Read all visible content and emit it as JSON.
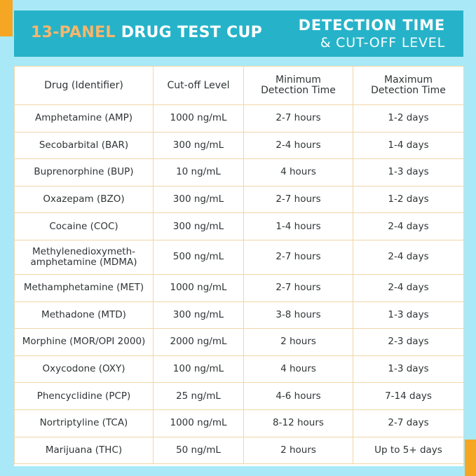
{
  "banner": {
    "title_accent": "13-PANEL",
    "title_main": "DRUG TEST CUP",
    "subtitle_line1": "DETECTION TIME",
    "subtitle_line2": "& CUT-OFF LEVEL",
    "background_color": "#26b3c9",
    "accent_color": "#f7b66c"
  },
  "page": {
    "background_color": "#a9e9f7",
    "corner_color": "#f5a623"
  },
  "table": {
    "headers": [
      "Drug (Identifier)",
      "Cut-off Level",
      "Minimum Detection Time",
      "Maximum Detection Time"
    ],
    "rows": [
      [
        "Amphetamine (AMP)",
        "1000 ng/mL",
        "2-7 hours",
        "1-2 days"
      ],
      [
        "Secobarbital (BAR)",
        "300 ng/mL",
        "2-4 hours",
        "1-4 days"
      ],
      [
        "Buprenorphine (BUP)",
        "10 ng/mL",
        "4 hours",
        "1-3 days"
      ],
      [
        "Oxazepam (BZO)",
        "300 ng/mL",
        "2-7 hours",
        "1-2 days"
      ],
      [
        "Cocaine (COC)",
        "300 ng/mL",
        "1-4 hours",
        "2-4 days"
      ],
      [
        "Methylenedioxymeth-amphetamine (MDMA)",
        "500 ng/mL",
        "2-7 hours",
        "2-4 days"
      ],
      [
        "Methamphetamine (MET)",
        "1000 ng/mL",
        "2-7 hours",
        "2-4 days"
      ],
      [
        "Methadone (MTD)",
        "300 ng/mL",
        "3-8 hours",
        "1-3 days"
      ],
      [
        "Morphine (MOR/OPI 2000)",
        "2000 ng/mL",
        "2 hours",
        "2-3 days"
      ],
      [
        "Oxycodone (OXY)",
        "100 ng/mL",
        "4 hours",
        "1-3 days"
      ],
      [
        "Phencyclidine (PCP)",
        "25 ng/mL",
        "4-6 hours",
        "7-14 days"
      ],
      [
        "Nortriptyline (TCA)",
        "1000 ng/mL",
        "8-12 hours",
        "2-7 days"
      ],
      [
        "Marijuana (THC)",
        "50 ng/mL",
        "2 hours",
        "Up to 5+ days"
      ]
    ]
  }
}
